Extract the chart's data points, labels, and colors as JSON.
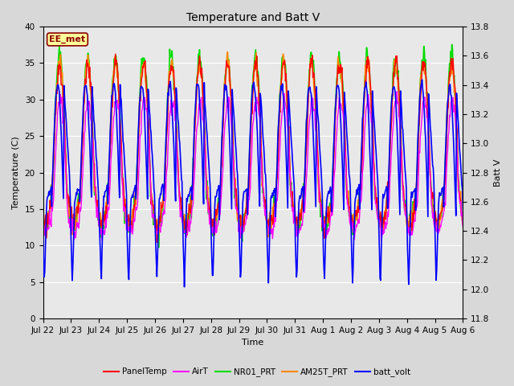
{
  "title": "Temperature and Batt V",
  "xlabel": "Time",
  "ylabel_left": "Temperature (C)",
  "ylabel_right": "Batt V",
  "annotation": "EE_met",
  "ylim_left": [
    0,
    40
  ],
  "ylim_right": [
    11.8,
    13.8
  ],
  "x_tick_labels": [
    "Jul 22",
    "Jul 23",
    "Jul 24",
    "Jul 25",
    "Jul 26",
    "Jul 27",
    "Jul 28",
    "Jul 29",
    "Jul 30",
    "Jul 31",
    "Aug 1",
    "Aug 2",
    "Aug 3",
    "Aug 4",
    "Aug 5",
    "Aug 6"
  ],
  "n_days": 15,
  "fig_facecolor": "#d8d8d8",
  "plot_bg_color": "#e8e8e8",
  "yticks_left": [
    0,
    5,
    10,
    15,
    20,
    25,
    30,
    35,
    40
  ],
  "yticks_right": [
    11.8,
    12.0,
    12.2,
    12.4,
    12.6,
    12.8,
    13.0,
    13.2,
    13.4,
    13.6,
    13.8
  ],
  "series": {
    "PanelTemp": {
      "color": "#ff0000",
      "lw": 1.0
    },
    "AirT": {
      "color": "#ff00ff",
      "lw": 1.0
    },
    "NR01_PRT": {
      "color": "#00dd00",
      "lw": 1.2
    },
    "AM25T_PRT": {
      "color": "#ff8800",
      "lw": 1.2
    },
    "batt_volt": {
      "color": "#0000ff",
      "lw": 1.2
    }
  },
  "legend_items": [
    {
      "label": "PanelTemp",
      "color": "#ff0000"
    },
    {
      "label": "AirT",
      "color": "#ff00ff"
    },
    {
      "label": "NR01_PRT",
      "color": "#00dd00"
    },
    {
      "label": "AM25T_PRT",
      "color": "#ff8800"
    },
    {
      "label": "batt_volt",
      "color": "#0000ff"
    }
  ]
}
